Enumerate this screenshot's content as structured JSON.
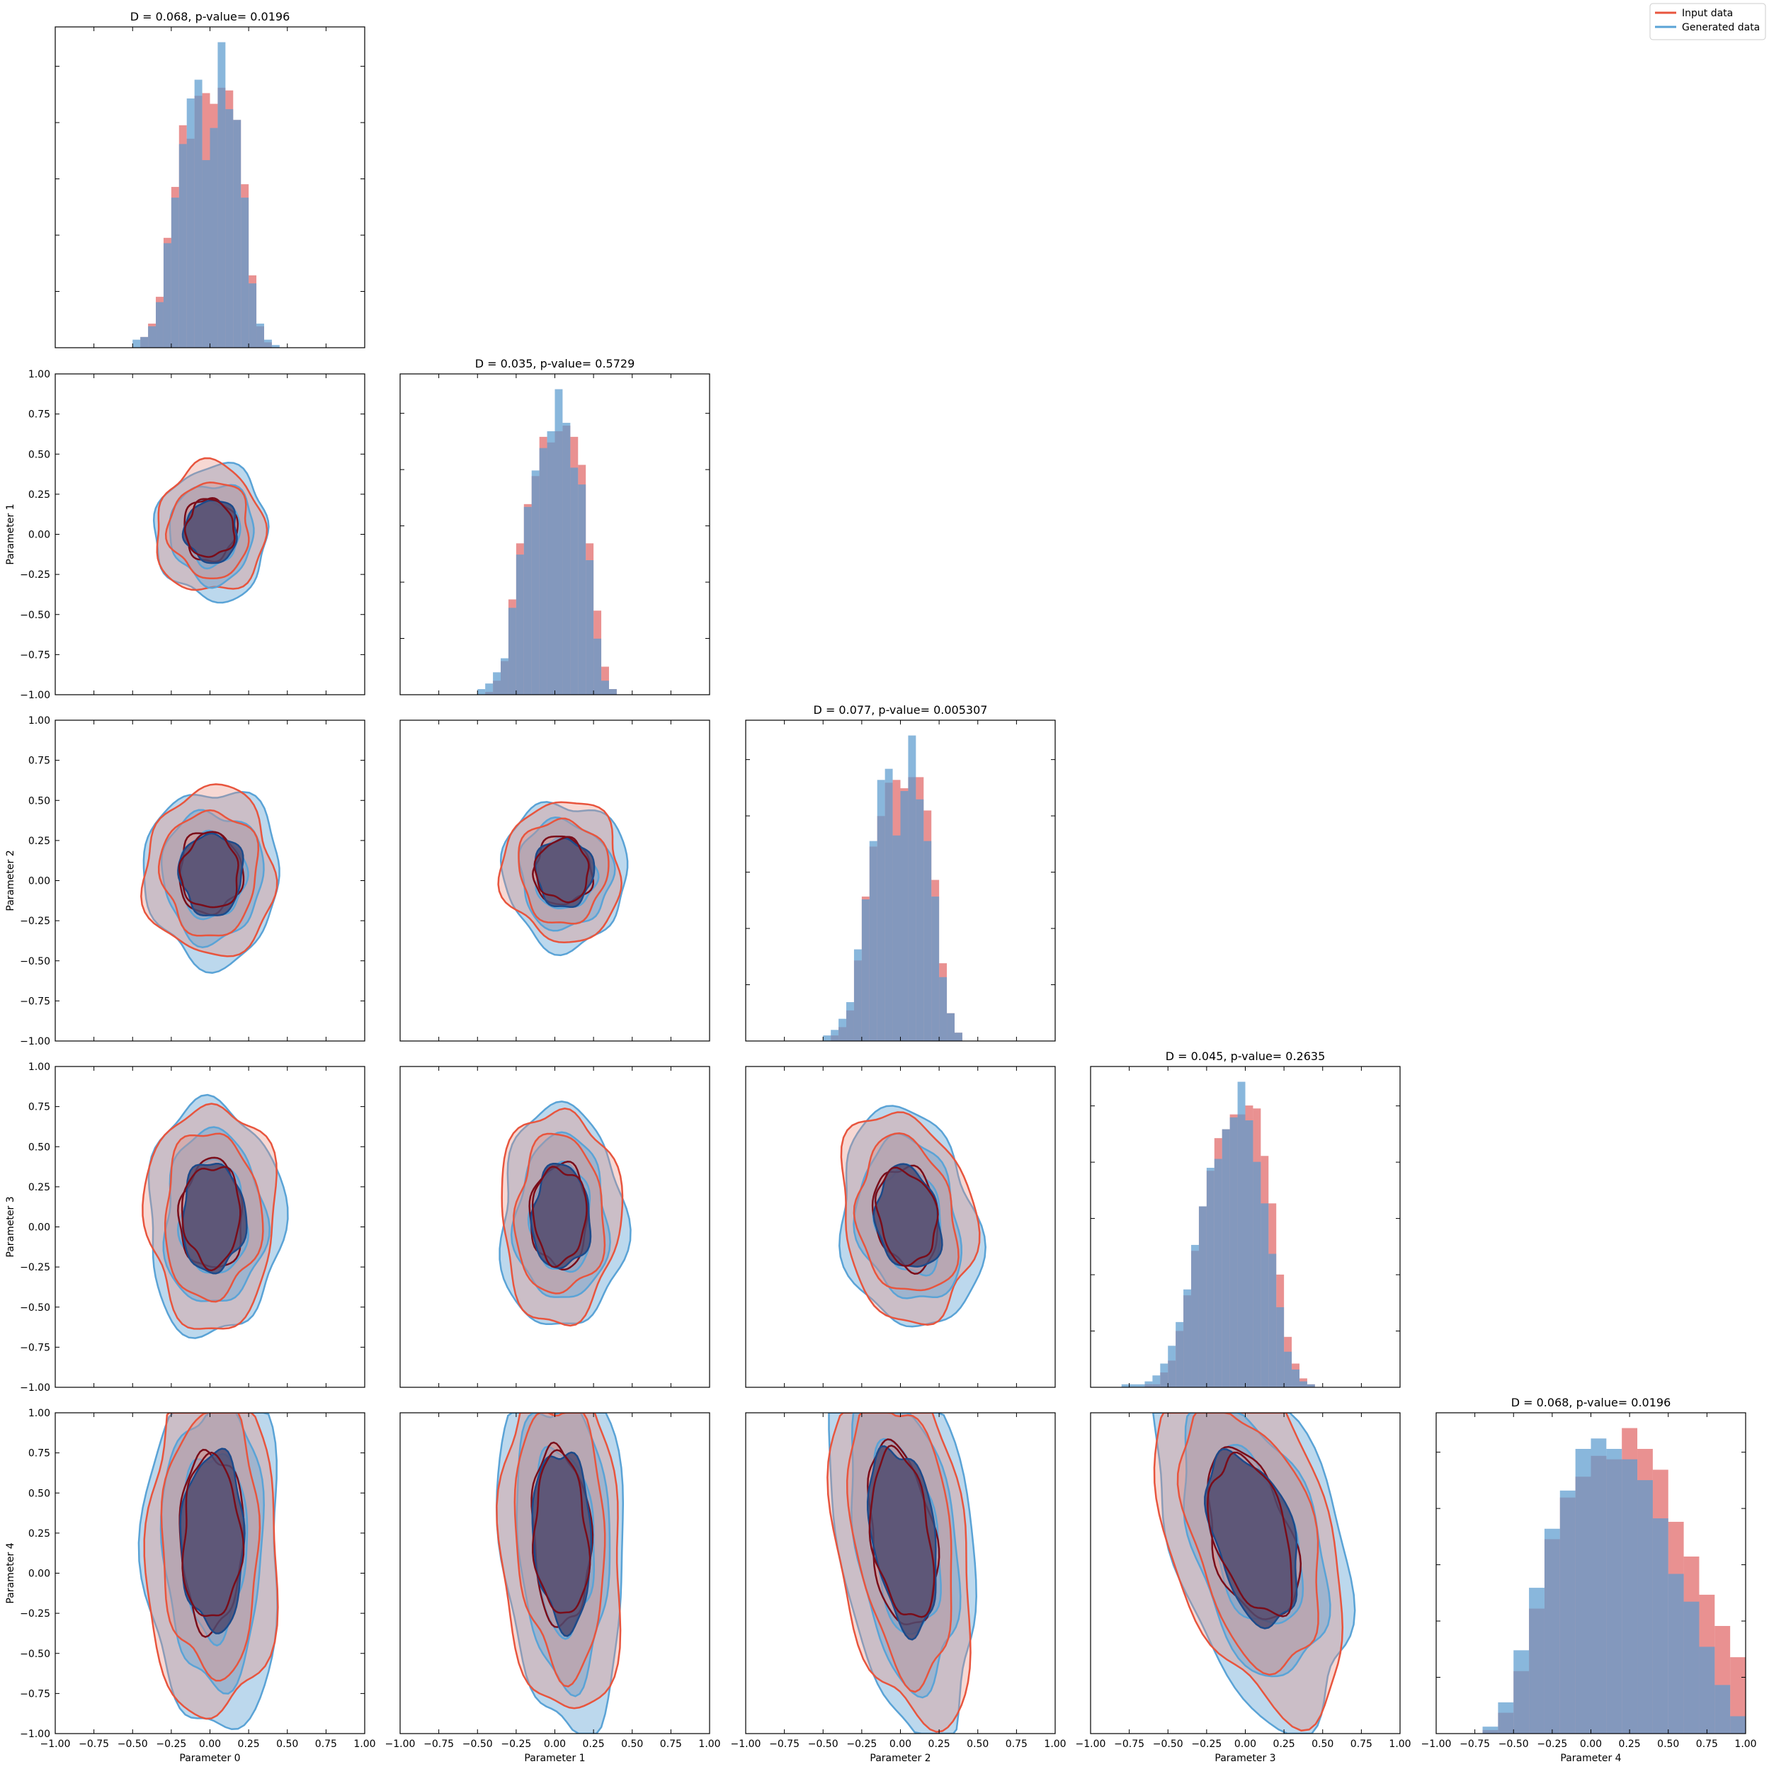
{
  "chart_data": {
    "type": "corner-plot",
    "parameters": [
      "Parameter 0",
      "Parameter 1",
      "Parameter 2",
      "Parameter 3",
      "Parameter 4"
    ],
    "axis_range": [
      -1.0,
      1.0
    ],
    "ticks": [
      -1.0,
      -0.75,
      -0.5,
      -0.25,
      0.0,
      0.25,
      0.5,
      0.75,
      1.0
    ],
    "tick_labels": [
      "−1.00",
      "−0.75",
      "−0.50",
      "−0.25",
      "0.00",
      "0.25",
      "0.50",
      "0.75",
      "1.00"
    ],
    "legend": {
      "placement": "top-right",
      "entries": [
        {
          "label": "Input data",
          "color": "#e8553e"
        },
        {
          "label": "Generated data",
          "color": "#5aa3d6"
        }
      ]
    },
    "colors": {
      "input_fill": "#e06666",
      "generated_fill": "#5b9bcf",
      "overlap_fill": "#8a88a3",
      "input_line": "#e8553e",
      "generated_line": "#5aa3d6",
      "input_dark": "#7a0d1a",
      "generated_dark": "#1c4a8a"
    },
    "diagonal": [
      {
        "title": "D = 0.068, p-value= 0.0196",
        "bin_width": 0.05,
        "bin_start": -0.5,
        "input": [
          0.0,
          0.04,
          0.09,
          0.19,
          0.41,
          0.6,
          0.83,
          0.78,
          0.94,
          0.95,
          0.91,
          0.97,
          0.96,
          0.85,
          0.61,
          0.27,
          0.08,
          0.02,
          0.0,
          0.0
        ],
        "generated": [
          0.03,
          0.04,
          0.08,
          0.17,
          0.39,
          0.56,
          0.76,
          0.93,
          1.0,
          0.7,
          0.82,
          1.14,
          0.89,
          0.85,
          0.56,
          0.24,
          0.09,
          0.03,
          0.01,
          0.0
        ]
      },
      {
        "title": "D = 0.035, p-value= 0.5729",
        "bin_width": 0.05,
        "bin_start": -0.5,
        "input": [
          0.0,
          0.01,
          0.05,
          0.12,
          0.34,
          0.54,
          0.68,
          0.78,
          0.92,
          0.9,
          0.94,
          0.96,
          0.92,
          0.82,
          0.54,
          0.3,
          0.1,
          0.02,
          0.0,
          0.0
        ],
        "generated": [
          0.02,
          0.04,
          0.08,
          0.13,
          0.31,
          0.5,
          0.67,
          0.8,
          0.88,
          0.94,
          1.09,
          0.97,
          0.81,
          0.75,
          0.48,
          0.2,
          0.05,
          0.02,
          0.0,
          0.0
        ]
      },
      {
        "title": "D = 0.077, p-value= 0.005307",
        "bin_width": 0.05,
        "bin_start": -0.5,
        "input": [
          0.0,
          0.02,
          0.05,
          0.11,
          0.29,
          0.52,
          0.7,
          0.81,
          0.93,
          0.94,
          0.91,
          0.95,
          0.95,
          0.83,
          0.58,
          0.28,
          0.1,
          0.03,
          0.0,
          0.0
        ],
        "generated": [
          0.02,
          0.04,
          0.08,
          0.14,
          0.33,
          0.51,
          0.72,
          0.94,
          0.98,
          0.74,
          0.9,
          1.1,
          0.87,
          0.72,
          0.52,
          0.23,
          0.1,
          0.03,
          0.0,
          0.0
        ]
      },
      {
        "title": "D = 0.045, p-value= 0.2635",
        "bin_width": 0.05,
        "bin_start": -0.85,
        "input": [
          0.0,
          0.0,
          0.0,
          0.0,
          0.01,
          0.01,
          0.05,
          0.09,
          0.19,
          0.31,
          0.46,
          0.61,
          0.73,
          0.84,
          0.87,
          0.92,
          0.92,
          0.95,
          0.94,
          0.78,
          0.62,
          0.38,
          0.17,
          0.08,
          0.03,
          0.01,
          0.0
        ],
        "generated": [
          0.0,
          0.01,
          0.01,
          0.01,
          0.02,
          0.04,
          0.08,
          0.14,
          0.22,
          0.33,
          0.48,
          0.61,
          0.74,
          0.77,
          0.87,
          0.91,
          1.03,
          0.9,
          0.76,
          0.62,
          0.45,
          0.27,
          0.12,
          0.06,
          0.02,
          0.01,
          0.0
        ]
      },
      {
        "title": "D = 0.068, p-value= 0.0196",
        "bin_width": 0.1,
        "bin_start": -1.0,
        "input": [
          0.0,
          0.0,
          0.0,
          0.01,
          0.06,
          0.18,
          0.36,
          0.56,
          0.68,
          0.74,
          0.8,
          0.79,
          0.88,
          0.82,
          0.76,
          0.61,
          0.51,
          0.4,
          0.31,
          0.22
        ],
        "generated": [
          0.0,
          0.0,
          0.0,
          0.02,
          0.09,
          0.24,
          0.42,
          0.59,
          0.7,
          0.82,
          0.85,
          0.82,
          0.79,
          0.73,
          0.62,
          0.46,
          0.38,
          0.25,
          0.14,
          0.05
        ]
      }
    ],
    "contours": [
      {
        "row": 1,
        "col": 0,
        "cx": 0.01,
        "cy": 0.02,
        "sx": 0.2,
        "sy": 0.23,
        "rot": 0.0
      },
      {
        "row": 2,
        "col": 0,
        "cx": 0.01,
        "cy": 0.04,
        "sx": 0.24,
        "sy": 0.3,
        "rot": 0.0
      },
      {
        "row": 2,
        "col": 1,
        "cx": 0.06,
        "cy": 0.05,
        "sx": 0.22,
        "sy": 0.25,
        "rot": 0.1
      },
      {
        "row": 3,
        "col": 0,
        "cx": 0.02,
        "cy": 0.06,
        "sx": 0.24,
        "sy": 0.4,
        "rot": 0.0
      },
      {
        "row": 3,
        "col": 1,
        "cx": 0.04,
        "cy": 0.06,
        "sx": 0.22,
        "sy": 0.38,
        "rot": 0.0
      },
      {
        "row": 3,
        "col": 2,
        "cx": 0.05,
        "cy": 0.05,
        "sx": 0.24,
        "sy": 0.38,
        "rot": 0.2
      },
      {
        "row": 4,
        "col": 0,
        "cx": 0.02,
        "cy": 0.2,
        "sx": 0.24,
        "sy": 0.65,
        "rot": 0.0
      },
      {
        "row": 4,
        "col": 1,
        "cx": 0.05,
        "cy": 0.22,
        "sx": 0.22,
        "sy": 0.65,
        "rot": 0.05
      },
      {
        "row": 4,
        "col": 2,
        "cx": 0.02,
        "cy": 0.22,
        "sx": 0.24,
        "sy": 0.68,
        "rot": 0.15
      },
      {
        "row": 4,
        "col": 3,
        "cx": 0.05,
        "cy": 0.22,
        "sx": 0.3,
        "sy": 0.65,
        "rot": 0.3
      }
    ]
  }
}
